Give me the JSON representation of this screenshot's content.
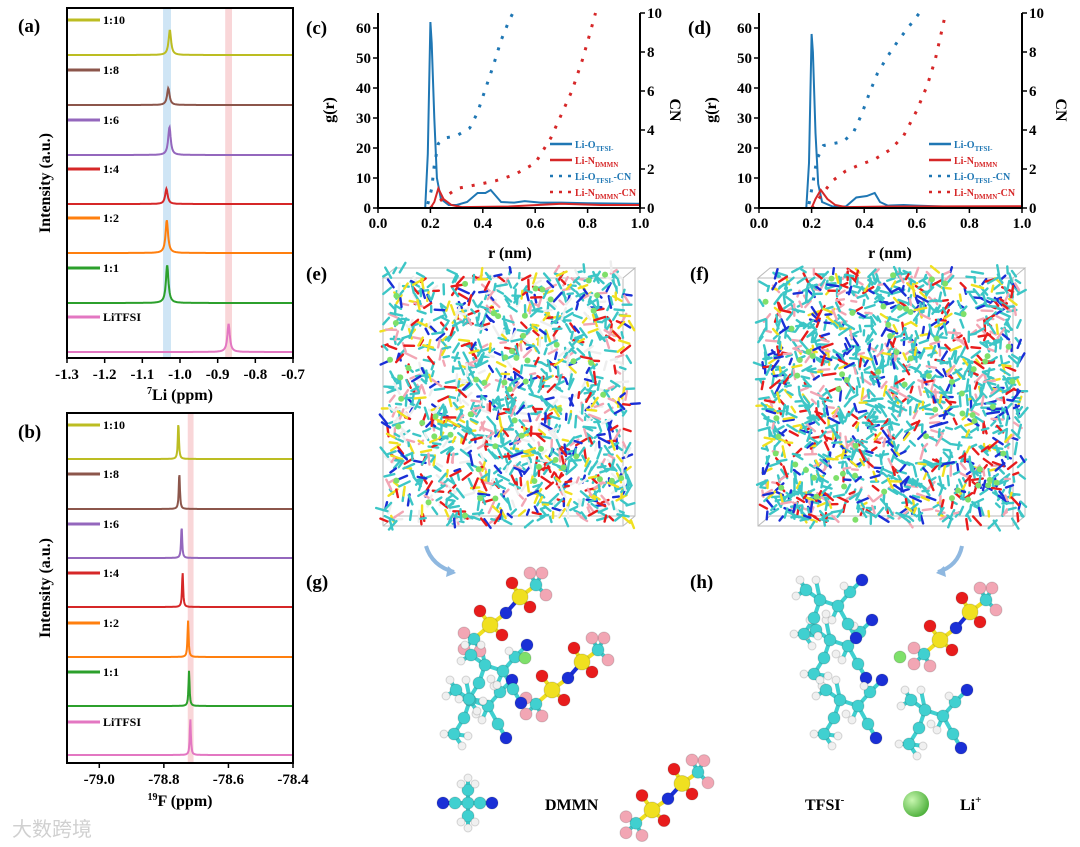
{
  "panel_labels": {
    "a": "(a)",
    "b": "(b)",
    "c": "(c)",
    "d": "(d)",
    "e": "(e)",
    "f": "(f)",
    "g": "(g)",
    "h": "(h)"
  },
  "colors": {
    "1:10": "#bcbd22",
    "1:8": "#8c564b",
    "1:6": "#9467bd",
    "1:4": "#d62728",
    "1:2": "#ff7f0e",
    "1:1": "#2ca02c",
    "LiTFSI": "#e377c2",
    "blue": "#1f77b4",
    "red": "#d62728",
    "blue_band": "#cfe5f5",
    "pink_band": "#f9d6d8"
  },
  "chart_data": [
    {
      "id": "a",
      "type": "line",
      "title": "",
      "xlabel_sup": "7",
      "xlabel": "Li (ppm)",
      "ylabel": "Intensity (a.u.)",
      "xlim": [
        -1.3,
        -0.7
      ],
      "x_reversed": false,
      "xticks": [
        "-1.3",
        "-1.2",
        "-1.1",
        "-1.0",
        "-0.9",
        "-0.8",
        "-0.7"
      ],
      "xtick_values": [
        -1.3,
        -1.2,
        -1.1,
        -1.0,
        -0.9,
        -0.8,
        -0.7
      ],
      "highlight_bands": [
        {
          "color": "blue",
          "range": [
            -1.045,
            -1.024
          ]
        },
        {
          "color": "pink",
          "range": [
            -0.88,
            -0.862
          ]
        }
      ],
      "series": [
        {
          "name": "1:10",
          "peak": -1.027,
          "height": 0.62,
          "width": 0.004
        },
        {
          "name": "1:8",
          "peak": -1.031,
          "height": 0.42,
          "width": 0.004
        },
        {
          "name": "1:6",
          "peak": -1.028,
          "height": 0.7,
          "width": 0.004
        },
        {
          "name": "1:4",
          "peak": -1.036,
          "height": 0.38,
          "width": 0.004
        },
        {
          "name": "1:2",
          "peak": -1.035,
          "height": 0.82,
          "width": 0.004
        },
        {
          "name": "1:1",
          "peak": -1.034,
          "height": 0.95,
          "width": 0.004
        },
        {
          "name": "LiTFSI",
          "peak": -0.871,
          "height": 0.7,
          "width": 0.004
        }
      ]
    },
    {
      "id": "b",
      "type": "line",
      "title": "",
      "xlabel_sup": "19",
      "xlabel": "F (ppm)",
      "ylabel": "Intensity (a.u.)",
      "xlim": [
        -79.1,
        -78.4
      ],
      "xticks": [
        "-79.0",
        "-78.8",
        "-78.6",
        "-78.4"
      ],
      "xtick_values": [
        -79.0,
        -78.8,
        -78.6,
        -78.4
      ],
      "highlight_bands": [
        {
          "color": "pink",
          "range": [
            -78.726,
            -78.708
          ]
        }
      ],
      "series": [
        {
          "name": "1:10",
          "peak": -78.755,
          "height": 0.92,
          "width": 0.002
        },
        {
          "name": "1:8",
          "peak": -78.752,
          "height": 0.92,
          "width": 0.002
        },
        {
          "name": "1:6",
          "peak": -78.745,
          "height": 0.8,
          "width": 0.002
        },
        {
          "name": "1:4",
          "peak": -78.742,
          "height": 0.88,
          "width": 0.002
        },
        {
          "name": "1:2",
          "peak": -78.725,
          "height": 0.92,
          "width": 0.002
        },
        {
          "name": "1:1",
          "peak": -78.722,
          "height": 0.88,
          "width": 0.002
        },
        {
          "name": "LiTFSI",
          "peak": -78.718,
          "height": 0.9,
          "width": 0.002
        }
      ]
    },
    {
      "id": "c",
      "type": "line",
      "xlabel": "r (nm)",
      "ylabel": "g(r)",
      "y2label": "CN",
      "xlim": [
        0,
        1.0
      ],
      "ylim": [
        0,
        65
      ],
      "y2lim": [
        0,
        10
      ],
      "xticks": [
        "0.0",
        "0.2",
        "0.4",
        "0.6",
        "0.8",
        "1.0"
      ],
      "xtick_values": [
        0,
        0.2,
        0.4,
        0.6,
        0.8,
        1.0
      ],
      "yticks": [
        "0",
        "10",
        "20",
        "30",
        "40",
        "50",
        "60"
      ],
      "ytick_values": [
        0,
        10,
        20,
        30,
        40,
        50,
        60
      ],
      "y2ticks": [
        "0",
        "2",
        "4",
        "6",
        "8",
        "10"
      ],
      "y2tick_values": [
        0,
        2,
        4,
        6,
        8,
        10
      ],
      "legend_position": "bottom-right",
      "series": [
        {
          "label": "Li-O",
          "sub": "TFSI-",
          "suffix": "",
          "color": "blue",
          "style": "solid",
          "axis": "left",
          "points": [
            [
              0,
              0
            ],
            [
              0.18,
              0
            ],
            [
              0.19,
              18
            ],
            [
              0.2,
              62
            ],
            [
              0.205,
              55
            ],
            [
              0.215,
              30
            ],
            [
              0.225,
              10
            ],
            [
              0.24,
              3
            ],
            [
              0.27,
              1
            ],
            [
              0.3,
              1
            ],
            [
              0.34,
              2
            ],
            [
              0.38,
              5
            ],
            [
              0.41,
              5
            ],
            [
              0.43,
              6
            ],
            [
              0.45,
              4
            ],
            [
              0.47,
              2
            ],
            [
              0.52,
              1.8
            ],
            [
              0.56,
              2.3
            ],
            [
              0.62,
              1.8
            ],
            [
              0.7,
              1.8
            ],
            [
              0.8,
              1.6
            ],
            [
              1.0,
              1.4
            ]
          ]
        },
        {
          "label": "Li-N",
          "sub": "DMMN",
          "suffix": "",
          "color": "red",
          "style": "solid",
          "axis": "left",
          "points": [
            [
              0,
              0
            ],
            [
              0.2,
              0
            ],
            [
              0.215,
              2
            ],
            [
              0.23,
              6.5
            ],
            [
              0.25,
              3
            ],
            [
              0.28,
              1
            ],
            [
              0.32,
              0.3
            ],
            [
              0.5,
              0.5
            ],
            [
              0.7,
              1.4
            ],
            [
              0.85,
              1
            ],
            [
              1.0,
              1
            ]
          ]
        },
        {
          "label": "Li-O",
          "sub": "TFSI-",
          "suffix": "-CN",
          "color": "blue",
          "style": "dotted",
          "axis": "right",
          "points": [
            [
              0.19,
              0.2
            ],
            [
              0.205,
              1
            ],
            [
              0.215,
              2.2
            ],
            [
              0.23,
              3.3
            ],
            [
              0.26,
              3.6
            ],
            [
              0.3,
              3.7
            ],
            [
              0.35,
              4.1
            ],
            [
              0.38,
              4.9
            ],
            [
              0.41,
              6.1
            ],
            [
              0.44,
              7.3
            ],
            [
              0.47,
              8.6
            ],
            [
              0.5,
              9.6
            ],
            [
              0.515,
              10
            ]
          ]
        },
        {
          "label": "Li-N",
          "sub": "DMMN",
          "suffix": "-CN",
          "color": "red",
          "style": "dotted",
          "axis": "right",
          "points": [
            [
              0.2,
              0
            ],
            [
              0.24,
              0.4
            ],
            [
              0.3,
              1
            ],
            [
              0.38,
              1.2
            ],
            [
              0.45,
              1.4
            ],
            [
              0.52,
              1.7
            ],
            [
              0.6,
              2.3
            ],
            [
              0.66,
              3.6
            ],
            [
              0.7,
              4.8
            ],
            [
              0.74,
              6
            ],
            [
              0.78,
              7.6
            ],
            [
              0.81,
              9
            ],
            [
              0.83,
              10
            ]
          ]
        }
      ]
    },
    {
      "id": "d",
      "type": "line",
      "xlabel": "r (nm)",
      "ylabel": "g(r)",
      "y2label": "CN",
      "xlim": [
        0,
        1.0
      ],
      "ylim": [
        0,
        65
      ],
      "y2lim": [
        0,
        10
      ],
      "xticks": [
        "0.0",
        "0.2",
        "0.4",
        "0.6",
        "0.8",
        "1.0"
      ],
      "xtick_values": [
        0,
        0.2,
        0.4,
        0.6,
        0.8,
        1.0
      ],
      "yticks": [
        "0",
        "10",
        "20",
        "30",
        "40",
        "50",
        "60"
      ],
      "ytick_values": [
        0,
        10,
        20,
        30,
        40,
        50,
        60
      ],
      "y2ticks": [
        "0",
        "2",
        "4",
        "6",
        "8",
        "10"
      ],
      "y2tick_values": [
        0,
        2,
        4,
        6,
        8,
        10
      ],
      "legend_position": "bottom-right",
      "series": [
        {
          "label": "Li-O",
          "sub": "TFSI-",
          "suffix": "",
          "color": "blue",
          "style": "solid",
          "axis": "left",
          "points": [
            [
              0,
              0
            ],
            [
              0.18,
              0
            ],
            [
              0.19,
              15
            ],
            [
              0.2,
              58
            ],
            [
              0.205,
              52
            ],
            [
              0.215,
              25
            ],
            [
              0.225,
              8
            ],
            [
              0.24,
              2
            ],
            [
              0.28,
              0.5
            ],
            [
              0.33,
              0.5
            ],
            [
              0.37,
              3.5
            ],
            [
              0.41,
              4
            ],
            [
              0.44,
              5
            ],
            [
              0.46,
              2
            ],
            [
              0.49,
              0.8
            ],
            [
              0.55,
              1
            ],
            [
              0.6,
              0.8
            ],
            [
              0.7,
              0.5
            ],
            [
              1.0,
              0.5
            ]
          ]
        },
        {
          "label": "Li-N",
          "sub": "DMMN",
          "suffix": "",
          "color": "red",
          "style": "solid",
          "axis": "left",
          "points": [
            [
              0,
              0
            ],
            [
              0.2,
              0
            ],
            [
              0.215,
              3
            ],
            [
              0.235,
              6
            ],
            [
              0.26,
              3
            ],
            [
              0.29,
              1
            ],
            [
              0.33,
              0.3
            ],
            [
              0.5,
              0.5
            ],
            [
              1.0,
              0.6
            ]
          ]
        },
        {
          "label": "Li-O",
          "sub": "TFSI-",
          "suffix": "-CN",
          "color": "blue",
          "style": "dotted",
          "axis": "right",
          "points": [
            [
              0.19,
              0.2
            ],
            [
              0.205,
              1.3
            ],
            [
              0.22,
              2.5
            ],
            [
              0.245,
              3.2
            ],
            [
              0.28,
              3.3
            ],
            [
              0.32,
              3.4
            ],
            [
              0.36,
              3.9
            ],
            [
              0.39,
              4.8
            ],
            [
              0.42,
              5.9
            ],
            [
              0.45,
              6.9
            ],
            [
              0.49,
              7.8
            ],
            [
              0.53,
              8.6
            ],
            [
              0.57,
              9.3
            ],
            [
              0.61,
              10
            ]
          ]
        },
        {
          "label": "Li-N",
          "sub": "DMMN",
          "suffix": "-CN",
          "color": "red",
          "style": "dotted",
          "axis": "right",
          "points": [
            [
              0.2,
              0
            ],
            [
              0.24,
              0.7
            ],
            [
              0.28,
              1.4
            ],
            [
              0.33,
              1.9
            ],
            [
              0.38,
              2.2
            ],
            [
              0.44,
              2.5
            ],
            [
              0.5,
              3
            ],
            [
              0.55,
              3.7
            ],
            [
              0.6,
              5
            ],
            [
              0.64,
              6.3
            ],
            [
              0.67,
              7.6
            ],
            [
              0.69,
              8.8
            ],
            [
              0.71,
              10
            ]
          ]
        }
      ]
    }
  ],
  "bottom_legend": {
    "dmmn": "DMMN",
    "tfsi": "TFSI",
    "tfsi_sup": "-",
    "li": "Li",
    "li_sup": "+"
  },
  "watermark": "大数跨境"
}
